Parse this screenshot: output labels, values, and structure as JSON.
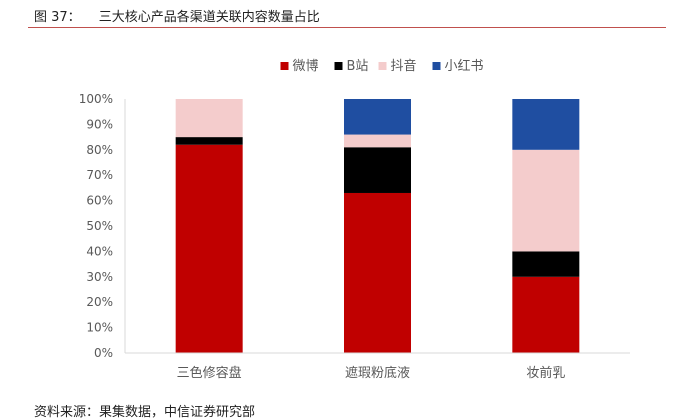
{
  "figure": {
    "label": "图 37：",
    "title": "三大核心产品各渠道关联内容数量占比",
    "source": "资料来源：果集数据，中信证券研究部"
  },
  "chart_data": {
    "type": "bar",
    "stacked": true,
    "percent": true,
    "categories": [
      "三色修容盘",
      "遮瑕粉底液",
      "妆前乳"
    ],
    "series": [
      {
        "name": "微博",
        "color": "#c00000",
        "values": [
          82,
          63,
          30
        ]
      },
      {
        "name": "B站",
        "color": "#000000",
        "values": [
          3,
          18,
          10
        ]
      },
      {
        "name": "抖音",
        "color": "#f4cccc",
        "values": [
          15,
          5,
          40
        ]
      },
      {
        "name": "小红书",
        "color": "#1f4ea1",
        "values": [
          0,
          14,
          20
        ]
      }
    ],
    "yticks": [
      "0%",
      "10%",
      "20%",
      "30%",
      "40%",
      "50%",
      "60%",
      "70%",
      "80%",
      "90%",
      "100%"
    ],
    "ylim": [
      0,
      100
    ],
    "legend_position": "top-center",
    "grid": false
  }
}
